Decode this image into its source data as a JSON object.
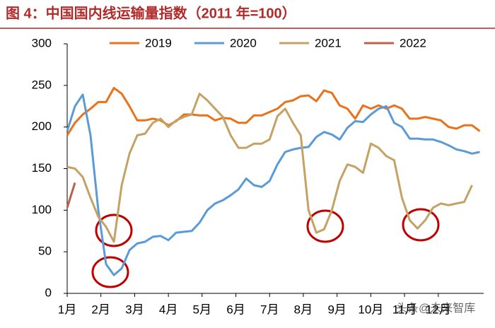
{
  "chart_data": {
    "type": "line",
    "title": "图 4：中国国内线运输量指数（2011 年=100）",
    "watermark": "头条@未来智库",
    "x": [
      1,
      2,
      3,
      4,
      5,
      6,
      7,
      8,
      9,
      10,
      11,
      12,
      13,
      14,
      15,
      16,
      17,
      18,
      19,
      20,
      21,
      22,
      23,
      24,
      25,
      26,
      27,
      28,
      29,
      30,
      31,
      32,
      33,
      34,
      35,
      36,
      37,
      38,
      39,
      40,
      41,
      42,
      43,
      44,
      45,
      46,
      47,
      48,
      49,
      50,
      51,
      52,
      53,
      54
    ],
    "xlim": [
      1,
      54.5
    ],
    "xticks": [
      {
        "value": 1,
        "label": "1月"
      },
      {
        "value": 5.33,
        "label": "2月"
      },
      {
        "value": 9.67,
        "label": "3月"
      },
      {
        "value": 14,
        "label": "4月"
      },
      {
        "value": 18.33,
        "label": "5月"
      },
      {
        "value": 22.67,
        "label": "6月"
      },
      {
        "value": 27,
        "label": "7月"
      },
      {
        "value": 31.33,
        "label": "8月"
      },
      {
        "value": 35.67,
        "label": "9月"
      },
      {
        "value": 40,
        "label": "10月"
      },
      {
        "value": 44.33,
        "label": "11月"
      },
      {
        "value": 48.67,
        "label": "12月"
      }
    ],
    "ylim": [
      0,
      300
    ],
    "yticks": [
      0,
      50,
      100,
      150,
      200,
      250,
      300
    ],
    "series": [
      {
        "name": "2019",
        "color": "#e8731b",
        "values": [
          190,
          205,
          215,
          222,
          230,
          230,
          247,
          240,
          225,
          208,
          208,
          210,
          208,
          202,
          207,
          215,
          215,
          214,
          214,
          208,
          211,
          210,
          205,
          205,
          214,
          214,
          218,
          222,
          230,
          232,
          237,
          238,
          231,
          244,
          241,
          226,
          222,
          210,
          226,
          222,
          226,
          222,
          226,
          222,
          210,
          210,
          212,
          210,
          208,
          200,
          198,
          202,
          202,
          195
        ]
      },
      {
        "name": "2020",
        "color": "#5b9bd5",
        "values": [
          195,
          225,
          239,
          190,
          100,
          35,
          22,
          30,
          52,
          60,
          62,
          68,
          69,
          64,
          73,
          74,
          75,
          85,
          100,
          108,
          112,
          118,
          125,
          138,
          130,
          128,
          135,
          155,
          170,
          173,
          175,
          176,
          188,
          194,
          191,
          185,
          199,
          207,
          206,
          215,
          222,
          225,
          205,
          200,
          186,
          186,
          185,
          185,
          182,
          178,
          173,
          171,
          168,
          170
        ]
      },
      {
        "name": "2021",
        "color": "#c4a263",
        "values": [
          152,
          150,
          140,
          115,
          92,
          80,
          62,
          130,
          168,
          190,
          192,
          205,
          210,
          200,
          208,
          212,
          215,
          240,
          232,
          222,
          212,
          190,
          175,
          175,
          180,
          180,
          185,
          213,
          222,
          205,
          190,
          100,
          73,
          77,
          100,
          135,
          155,
          152,
          145,
          180,
          175,
          165,
          160,
          115,
          88,
          78,
          88,
          103,
          108,
          106,
          108,
          110,
          130,
          null
        ]
      },
      {
        "name": "2022",
        "color": "#c0604a",
        "values": [
          103,
          133,
          null,
          null,
          null,
          null,
          null,
          null,
          null,
          null,
          null,
          null,
          null,
          null,
          null,
          null,
          null,
          null,
          null,
          null,
          null,
          null,
          null,
          null,
          null,
          null,
          null,
          null,
          null,
          null,
          null,
          null,
          null,
          null,
          null,
          null,
          null,
          null,
          null,
          null,
          null,
          null,
          null,
          null,
          null,
          null,
          null,
          null,
          null,
          null,
          null,
          null,
          null,
          null
        ]
      }
    ]
  }
}
